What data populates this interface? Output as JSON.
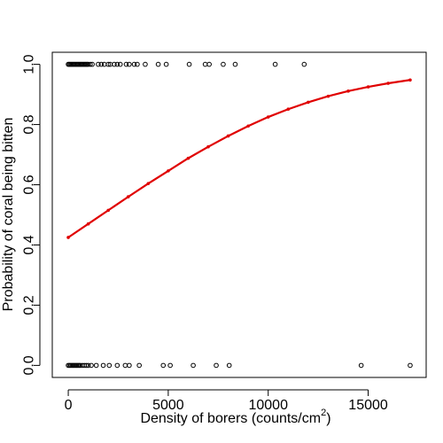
{
  "chart_data": {
    "type": "scatter",
    "title": "",
    "xlabel": {
      "prefix": "Density of borers (counts/cm",
      "superscript": "2",
      "suffix": ")"
    },
    "ylabel": "Probability of coral being bitten",
    "xlim": [
      -800,
      17900
    ],
    "ylim": [
      -0.04,
      1.04
    ],
    "x_ticks": [
      0,
      5000,
      10000,
      15000
    ],
    "x_tick_labels": [
      "0",
      "5000",
      "10000",
      "15000"
    ],
    "y_ticks": [
      0.0,
      0.2,
      0.4,
      0.6,
      0.8,
      1.0
    ],
    "y_tick_labels": [
      "0.0",
      "0.2",
      "0.4",
      "0.6",
      "0.8",
      "1.0"
    ],
    "grid": false,
    "legend": "none",
    "series": [
      {
        "kind": "points",
        "marker": "open-circle",
        "color": "#000000",
        "points": [
          {
            "x": 0,
            "y": 1
          },
          {
            "x": 50,
            "y": 1
          },
          {
            "x": 100,
            "y": 1
          },
          {
            "x": 150,
            "y": 1
          },
          {
            "x": 200,
            "y": 1
          },
          {
            "x": 250,
            "y": 1
          },
          {
            "x": 300,
            "y": 1
          },
          {
            "x": 350,
            "y": 1
          },
          {
            "x": 400,
            "y": 1
          },
          {
            "x": 450,
            "y": 1
          },
          {
            "x": 500,
            "y": 1
          },
          {
            "x": 550,
            "y": 1
          },
          {
            "x": 600,
            "y": 1
          },
          {
            "x": 650,
            "y": 1
          },
          {
            "x": 700,
            "y": 1
          },
          {
            "x": 750,
            "y": 1
          },
          {
            "x": 800,
            "y": 1
          },
          {
            "x": 850,
            "y": 1
          },
          {
            "x": 900,
            "y": 1
          },
          {
            "x": 950,
            "y": 1
          },
          {
            "x": 1000,
            "y": 1
          },
          {
            "x": 1100,
            "y": 1
          },
          {
            "x": 1200,
            "y": 1
          },
          {
            "x": 1500,
            "y": 1
          },
          {
            "x": 1650,
            "y": 1
          },
          {
            "x": 1800,
            "y": 1
          },
          {
            "x": 2000,
            "y": 1
          },
          {
            "x": 2100,
            "y": 1
          },
          {
            "x": 2300,
            "y": 1
          },
          {
            "x": 2450,
            "y": 1
          },
          {
            "x": 2600,
            "y": 1
          },
          {
            "x": 2900,
            "y": 1
          },
          {
            "x": 3050,
            "y": 1
          },
          {
            "x": 3300,
            "y": 1
          },
          {
            "x": 3450,
            "y": 1
          },
          {
            "x": 3850,
            "y": 1
          },
          {
            "x": 4500,
            "y": 1
          },
          {
            "x": 4900,
            "y": 1
          },
          {
            "x": 6050,
            "y": 1
          },
          {
            "x": 6850,
            "y": 1
          },
          {
            "x": 7050,
            "y": 1
          },
          {
            "x": 7750,
            "y": 1
          },
          {
            "x": 8350,
            "y": 1
          },
          {
            "x": 10350,
            "y": 1
          },
          {
            "x": 11800,
            "y": 1
          },
          {
            "x": 0,
            "y": 0
          },
          {
            "x": 60,
            "y": 0
          },
          {
            "x": 120,
            "y": 0
          },
          {
            "x": 180,
            "y": 0
          },
          {
            "x": 240,
            "y": 0
          },
          {
            "x": 300,
            "y": 0
          },
          {
            "x": 360,
            "y": 0
          },
          {
            "x": 420,
            "y": 0
          },
          {
            "x": 480,
            "y": 0
          },
          {
            "x": 540,
            "y": 0
          },
          {
            "x": 600,
            "y": 0
          },
          {
            "x": 700,
            "y": 0
          },
          {
            "x": 800,
            "y": 0
          },
          {
            "x": 900,
            "y": 0
          },
          {
            "x": 1000,
            "y": 0
          },
          {
            "x": 1150,
            "y": 0
          },
          {
            "x": 1400,
            "y": 0
          },
          {
            "x": 1750,
            "y": 0
          },
          {
            "x": 2050,
            "y": 0
          },
          {
            "x": 2450,
            "y": 0
          },
          {
            "x": 2850,
            "y": 0
          },
          {
            "x": 3050,
            "y": 0
          },
          {
            "x": 3550,
            "y": 0
          },
          {
            "x": 4750,
            "y": 0
          },
          {
            "x": 5100,
            "y": 0
          },
          {
            "x": 6250,
            "y": 0
          },
          {
            "x": 7400,
            "y": 0
          },
          {
            "x": 8050,
            "y": 0
          },
          {
            "x": 14650,
            "y": 0
          },
          {
            "x": 17100,
            "y": 0
          }
        ]
      },
      {
        "kind": "fitted-line",
        "color": "#e00000",
        "x": [
          0,
          1000,
          2000,
          3000,
          4000,
          5000,
          6000,
          7000,
          8000,
          9000,
          10000,
          11000,
          12000,
          13000,
          14000,
          15000,
          16000,
          17100
        ],
        "y": [
          0.425,
          0.47,
          0.515,
          0.56,
          0.604,
          0.646,
          0.688,
          0.726,
          0.762,
          0.795,
          0.825,
          0.851,
          0.874,
          0.894,
          0.911,
          0.925,
          0.937,
          0.948
        ]
      }
    ]
  }
}
